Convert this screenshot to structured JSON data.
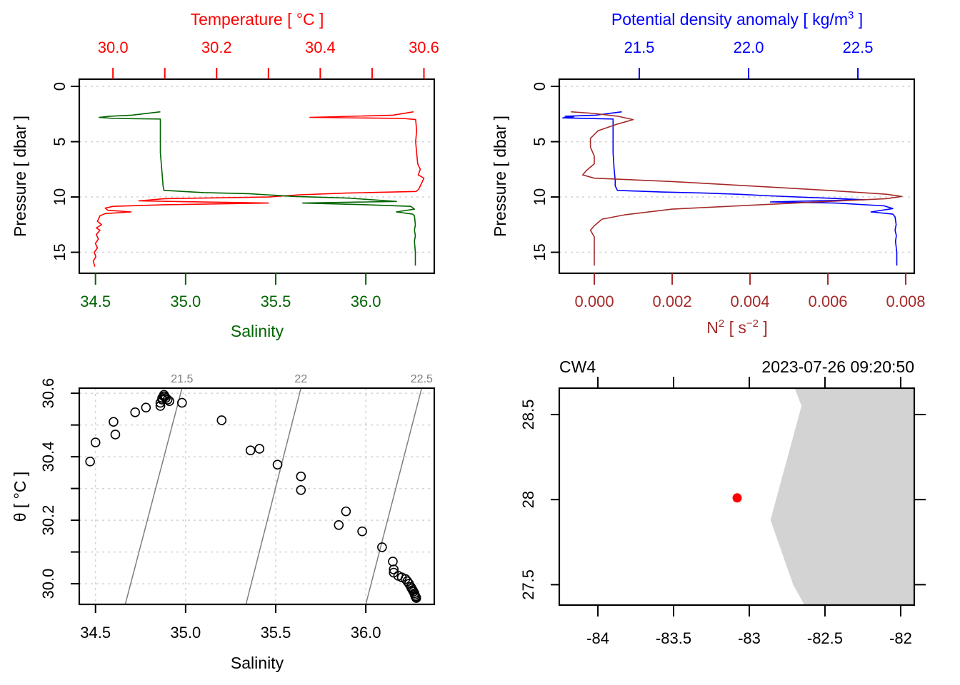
{
  "colors": {
    "temperature": "#ff0000",
    "salinity": "#006400",
    "density": "#0000ff",
    "n2": "#a52a2a",
    "isopycnal": "#7f7f7f",
    "land": "#d3d3d3",
    "station": "#ff0000",
    "axis": "#000000"
  },
  "chart_data": [
    {
      "id": "ts-profile",
      "type": "line",
      "title": "",
      "top_axis": {
        "label": "Temperature [ °C ]",
        "ticks": [
          30.0,
          30.1,
          30.2,
          30.3,
          30.4,
          30.5,
          30.6
        ],
        "tick_labels": [
          "30.0",
          "",
          "30.2",
          "",
          "30.4",
          "",
          "30.6"
        ],
        "range": [
          29.935,
          30.62
        ]
      },
      "bottom_axis": {
        "label": "Salinity",
        "ticks": [
          34.5,
          35.0,
          35.5,
          36.0
        ],
        "tick_labels": [
          "34.5",
          "35.0",
          "35.5",
          "36.0"
        ],
        "range": [
          34.41,
          36.38
        ]
      },
      "y_axis": {
        "label": "Pressure [ dbar ]",
        "ticks": [
          0,
          5,
          10,
          15
        ],
        "tick_labels": [
          "0",
          "5",
          "10",
          "15"
        ],
        "range": [
          -0.65,
          16.9
        ],
        "reversed": true
      },
      "grid": "horizontal dotted",
      "series": [
        {
          "name": "Temperature",
          "axis": "top",
          "points": [
            [
              30.58,
              2.3
            ],
            [
              30.54,
              2.6
            ],
            [
              30.38,
              2.8
            ],
            [
              30.56,
              2.9
            ],
            [
              30.584,
              3.0
            ],
            [
              30.586,
              4.0
            ],
            [
              30.584,
              5.0
            ],
            [
              30.586,
              6.0
            ],
            [
              30.588,
              7.0
            ],
            [
              30.593,
              7.5
            ],
            [
              30.589,
              8.0
            ],
            [
              30.6,
              8.3
            ],
            [
              30.595,
              8.8
            ],
            [
              30.59,
              9.3
            ],
            [
              30.585,
              9.5
            ],
            [
              30.45,
              9.65
            ],
            [
              30.36,
              9.8
            ],
            [
              30.3,
              10.0
            ],
            [
              30.1,
              10.15
            ],
            [
              30.05,
              10.35
            ],
            [
              30.3,
              10.55
            ],
            [
              30.1,
              10.7
            ],
            [
              30.0,
              10.85
            ],
            [
              29.985,
              11.0
            ],
            [
              29.99,
              11.2
            ],
            [
              30.035,
              11.35
            ],
            [
              29.985,
              11.5
            ],
            [
              29.975,
              11.7
            ],
            [
              29.97,
              12.2
            ],
            [
              29.978,
              12.5
            ],
            [
              29.968,
              12.8
            ],
            [
              29.975,
              13.0
            ],
            [
              29.968,
              13.4
            ],
            [
              29.972,
              13.8
            ],
            [
              29.966,
              14.2
            ],
            [
              29.97,
              14.6
            ],
            [
              29.964,
              15.0
            ],
            [
              29.967,
              15.4
            ],
            [
              29.962,
              15.8
            ],
            [
              29.965,
              16.3
            ]
          ]
        },
        {
          "name": "Salinity",
          "axis": "bottom",
          "points": [
            [
              34.86,
              2.3
            ],
            [
              34.7,
              2.6
            ],
            [
              34.58,
              2.7
            ],
            [
              34.52,
              2.8
            ],
            [
              34.6,
              2.9
            ],
            [
              34.86,
              2.95
            ],
            [
              34.86,
              4.0
            ],
            [
              34.86,
              6.0
            ],
            [
              34.865,
              7.0
            ],
            [
              34.87,
              8.0
            ],
            [
              34.875,
              9.0
            ],
            [
              34.88,
              9.4
            ],
            [
              35.1,
              9.6
            ],
            [
              35.35,
              9.7
            ],
            [
              35.45,
              9.8
            ],
            [
              35.6,
              9.95
            ],
            [
              35.9,
              10.1
            ],
            [
              36.17,
              10.4
            ],
            [
              35.65,
              10.55
            ],
            [
              36.0,
              10.7
            ],
            [
              36.25,
              10.85
            ],
            [
              36.27,
              11.1
            ],
            [
              36.17,
              11.35
            ],
            [
              36.26,
              11.55
            ],
            [
              36.27,
              11.7
            ],
            [
              36.275,
              12.5
            ],
            [
              36.27,
              13.0
            ],
            [
              36.275,
              13.5
            ],
            [
              36.27,
              14.0
            ],
            [
              36.275,
              15.0
            ],
            [
              36.275,
              16.2
            ]
          ]
        }
      ]
    },
    {
      "id": "density-n2-profile",
      "type": "line",
      "title": "",
      "top_axis": {
        "label": "Potential density anomaly [ kg/m",
        "label_sup": "3",
        "label_tail": " ]",
        "ticks": [
          21.5,
          22.0,
          22.5
        ],
        "tick_labels": [
          "21.5",
          "22.0",
          "22.5"
        ],
        "range": [
          21.134,
          22.758
        ]
      },
      "bottom_axis": {
        "label": "N",
        "label_sup": "2",
        "label_mid": " [ s",
        "label_sup2": "−2",
        "label_tail": " ]",
        "ticks": [
          0.0,
          0.002,
          0.004,
          0.006,
          0.008
        ],
        "tick_labels": [
          "0.000",
          "0.002",
          "0.004",
          "0.006",
          "0.008"
        ],
        "range": [
          -0.0009,
          0.00822
        ]
      },
      "y_axis": {
        "label": "Pressure [ dbar ]",
        "ticks": [
          0,
          5,
          10,
          15
        ],
        "tick_labels": [
          "0",
          "5",
          "10",
          "15"
        ],
        "range": [
          -0.65,
          16.9
        ],
        "reversed": true
      },
      "grid": "horizontal dotted",
      "series": [
        {
          "name": "Potential density anomaly",
          "axis": "top",
          "points": [
            [
              21.42,
              2.3
            ],
            [
              21.3,
              2.6
            ],
            [
              21.16,
              2.7
            ],
            [
              21.2,
              2.75
            ],
            [
              21.15,
              2.85
            ],
            [
              21.38,
              2.95
            ],
            [
              21.38,
              4.0
            ],
            [
              21.38,
              6.0
            ],
            [
              21.385,
              7.5
            ],
            [
              21.39,
              8.5
            ],
            [
              21.39,
              9.0
            ],
            [
              21.4,
              9.4
            ],
            [
              21.6,
              9.55
            ],
            [
              21.8,
              9.65
            ],
            [
              21.95,
              9.75
            ],
            [
              22.1,
              9.9
            ],
            [
              22.35,
              10.1
            ],
            [
              22.53,
              10.25
            ],
            [
              22.1,
              10.45
            ],
            [
              22.4,
              10.55
            ],
            [
              22.62,
              10.8
            ],
            [
              22.66,
              11.05
            ],
            [
              22.56,
              11.35
            ],
            [
              22.66,
              11.55
            ],
            [
              22.67,
              11.8
            ],
            [
              22.675,
              12.5
            ],
            [
              22.67,
              13.0
            ],
            [
              22.676,
              13.5
            ],
            [
              22.672,
              14.0
            ],
            [
              22.678,
              15.0
            ],
            [
              22.678,
              16.2
            ]
          ]
        },
        {
          "name": "N2",
          "axis": "bottom",
          "points": [
            [
              -0.0006,
              2.3
            ],
            [
              0.0,
              2.45
            ],
            [
              0.0006,
              2.7
            ],
            [
              0.001,
              3.0
            ],
            [
              0.0006,
              3.4
            ],
            [
              0.0001,
              4.0
            ],
            [
              -0.0001,
              4.7
            ],
            [
              -0.0001,
              5.5
            ],
            [
              0.0,
              6.3
            ],
            [
              0.0,
              7.0
            ],
            [
              -0.0002,
              7.6
            ],
            [
              -0.0003,
              8.0
            ],
            [
              0.0,
              8.3
            ],
            [
              0.002,
              8.6
            ],
            [
              0.004,
              9.0
            ],
            [
              0.006,
              9.4
            ],
            [
              0.0075,
              9.75
            ],
            [
              0.0079,
              9.95
            ],
            [
              0.0075,
              10.15
            ],
            [
              0.006,
              10.4
            ],
            [
              0.004,
              10.75
            ],
            [
              0.002,
              11.1
            ],
            [
              0.0008,
              11.6
            ],
            [
              0.0002,
              12.0
            ],
            [
              0.0,
              12.6
            ],
            [
              -0.0001,
              13.0
            ],
            [
              0.0,
              13.6
            ],
            [
              0.0,
              14.5
            ],
            [
              0.0,
              15.5
            ],
            [
              0.0,
              16.2
            ]
          ]
        }
      ]
    },
    {
      "id": "ts-diagram",
      "type": "scatter",
      "title": "",
      "xlabel": "Salinity",
      "ylabel": "θ [ °C ]",
      "x_axis": {
        "ticks": [
          34.5,
          35.0,
          35.5,
          36.0
        ],
        "tick_labels": [
          "34.5",
          "35.0",
          "35.5",
          "36.0"
        ],
        "range": [
          34.41,
          36.38
        ]
      },
      "y_axis": {
        "ticks": [
          30.0,
          30.1,
          30.2,
          30.3,
          30.4,
          30.5,
          30.6
        ],
        "tick_labels": [
          "30.0",
          "",
          "30.2",
          "",
          "30.4",
          "",
          "30.6"
        ],
        "range": [
          29.935,
          30.616
        ]
      },
      "grid": "dotted both",
      "isopycnals": [
        {
          "label": "21.5",
          "points": [
            [
              34.665,
              29.935
            ],
            [
              34.98,
              30.616
            ]
          ]
        },
        {
          "label": "22",
          "points": [
            [
              35.335,
              29.935
            ],
            [
              35.64,
              30.616
            ]
          ]
        },
        {
          "label": "22.5",
          "points": [
            [
              36.0,
              29.935
            ],
            [
              36.31,
              30.616
            ]
          ]
        }
      ],
      "points": [
        [
          34.47,
          30.385
        ],
        [
          34.5,
          30.445
        ],
        [
          34.6,
          30.51
        ],
        [
          34.61,
          30.47
        ],
        [
          34.72,
          30.54
        ],
        [
          34.78,
          30.555
        ],
        [
          34.86,
          30.56
        ],
        [
          34.86,
          30.57
        ],
        [
          34.87,
          30.58
        ],
        [
          34.87,
          30.585
        ],
        [
          34.88,
          30.59
        ],
        [
          34.88,
          30.595
        ],
        [
          34.885,
          30.59
        ],
        [
          34.89,
          30.585
        ],
        [
          34.9,
          30.58
        ],
        [
          34.91,
          30.575
        ],
        [
          34.98,
          30.57
        ],
        [
          35.2,
          30.515
        ],
        [
          35.36,
          30.42
        ],
        [
          35.41,
          30.425
        ],
        [
          35.51,
          30.375
        ],
        [
          35.64,
          30.338
        ],
        [
          35.64,
          30.295
        ],
        [
          35.85,
          30.185
        ],
        [
          35.89,
          30.228
        ],
        [
          35.98,
          30.165
        ],
        [
          36.09,
          30.115
        ],
        [
          36.15,
          30.07
        ],
        [
          36.155,
          30.045
        ],
        [
          36.155,
          30.035
        ],
        [
          36.18,
          30.025
        ],
        [
          36.2,
          30.02
        ],
        [
          36.22,
          30.015
        ],
        [
          36.23,
          30.008
        ],
        [
          36.24,
          30.0
        ],
        [
          36.25,
          29.99
        ],
        [
          36.255,
          29.985
        ],
        [
          36.26,
          29.98
        ],
        [
          36.265,
          29.975
        ],
        [
          36.27,
          29.97
        ],
        [
          36.272,
          29.965
        ],
        [
          36.275,
          29.96
        ],
        [
          36.278,
          29.958
        ],
        [
          36.28,
          29.955
        ]
      ]
    },
    {
      "id": "station-map",
      "type": "scatter",
      "title_left": "CW4",
      "title_right": "2023-07-26 09:20:50",
      "x_axis": {
        "ticks": [
          -84,
          -83.5,
          -83,
          -82.5,
          -82
        ],
        "tick_labels": [
          "-84",
          "-83.5",
          "-83",
          "-82.5",
          "-82"
        ],
        "range": [
          -84.255,
          -81.91
        ]
      },
      "y_axis": {
        "ticks": [
          27.5,
          28.0,
          28.5
        ],
        "tick_labels": [
          "27.5",
          "28",
          "28.5"
        ],
        "range": [
          27.38,
          28.655
        ]
      },
      "land_polygon": [
        [
          -82.7,
          28.655
        ],
        [
          -82.655,
          28.55
        ],
        [
          -82.86,
          27.88
        ],
        [
          -82.71,
          27.5
        ],
        [
          -82.635,
          27.38
        ],
        [
          -81.91,
          27.38
        ],
        [
          -81.91,
          28.655
        ]
      ],
      "station": {
        "lon": -83.08,
        "lat": 28.01
      }
    }
  ]
}
